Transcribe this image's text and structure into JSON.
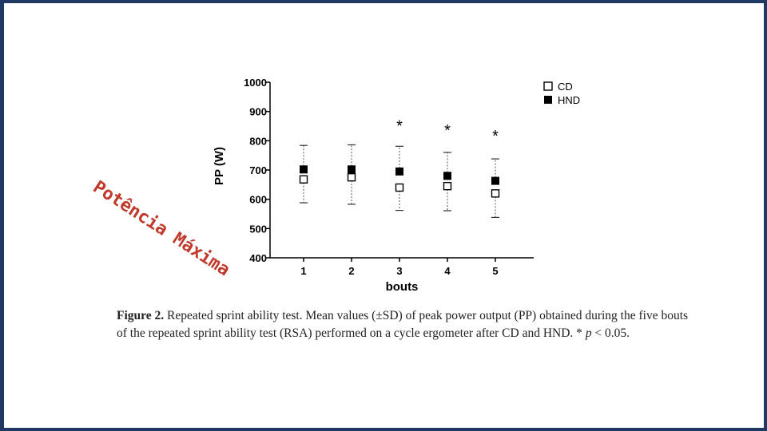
{
  "chart_data": {
    "type": "scatter",
    "x": [
      1,
      2,
      3,
      4,
      5
    ],
    "xlabel": "bouts",
    "ylabel": "PP (W)",
    "ylim": [
      400,
      1000
    ],
    "yticks": [
      400,
      500,
      600,
      700,
      800,
      900,
      1000
    ],
    "xticks": [
      "1",
      "2",
      "3",
      "4",
      "5"
    ],
    "grid": false,
    "legend_position": "top-right",
    "series": [
      {
        "name": "CD",
        "marker": "open-square",
        "values": [
          668,
          675,
          640,
          645,
          620
        ],
        "sd": [
          80,
          92,
          78,
          84,
          82
        ]
      },
      {
        "name": "HND",
        "marker": "filled-square",
        "values": [
          702,
          702,
          695,
          680,
          663
        ],
        "sd": [
          82,
          84,
          86,
          80,
          75
        ]
      }
    ],
    "annotations": [
      {
        "x": 3,
        "text": "*",
        "y": 860
      },
      {
        "x": 4,
        "text": "*",
        "y": 845
      },
      {
        "x": 5,
        "text": "*",
        "y": 825
      }
    ]
  },
  "overlay_text": "Potência Máxima",
  "overlay_color": "#c0392b",
  "frame_color": "#1f3864",
  "caption": {
    "label": "Figure 2.",
    "text": "Repeated sprint ability test. Mean values (±SD) of peak power output (PP) obtained during the five bouts of the repeated sprint ability test (RSA) performed on a cycle ergometer after CD and HND. *",
    "p_symbol": "p",
    "p_value": " < 0.05."
  }
}
